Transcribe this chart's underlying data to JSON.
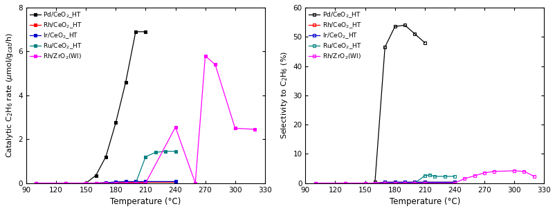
{
  "left_plot": {
    "xlabel": "Temperature (°C)",
    "ylabel": "Catalytic C$_2$H$_6$ rate ($\\mu$mol/g$_{cat}$/h)",
    "xlim": [
      90,
      330
    ],
    "ylim": [
      0,
      8
    ],
    "xticks": [
      90,
      120,
      150,
      180,
      210,
      240,
      270,
      300,
      330
    ],
    "yticks": [
      0,
      2,
      4,
      6,
      8
    ],
    "series": [
      {
        "label": "Pd/CeO$_2$_HT",
        "color": "#000000",
        "marker": "s",
        "markerface": "black",
        "x": [
          100,
          130,
          150,
          160,
          170,
          180,
          190,
          200,
          210
        ],
        "y": [
          0.0,
          0.0,
          0.0,
          0.35,
          1.2,
          2.75,
          4.6,
          6.9,
          6.9
        ]
      },
      {
        "label": "Rh/CeO$_2$_HT",
        "color": "#ff0000",
        "marker": "s",
        "markerface": "red",
        "x": [
          100,
          130,
          150,
          160,
          170,
          180,
          190,
          200,
          210,
          240
        ],
        "y": [
          0.0,
          0.0,
          0.0,
          0.0,
          0.02,
          0.04,
          0.04,
          0.04,
          0.04,
          0.04
        ]
      },
      {
        "label": "Ir/CeO$_2$_HT",
        "color": "#0000cc",
        "marker": "s",
        "markerface": "#0000cc",
        "x": [
          100,
          130,
          150,
          160,
          170,
          180,
          190,
          200,
          210,
          240
        ],
        "y": [
          0.0,
          0.0,
          0.0,
          0.0,
          0.02,
          0.05,
          0.07,
          0.07,
          0.07,
          0.07
        ]
      },
      {
        "label": "Ru/CeO$_2$_HT",
        "color": "#008080",
        "marker": "s",
        "markerface": "#008080",
        "x": [
          100,
          130,
          150,
          160,
          170,
          180,
          190,
          200,
          210,
          220,
          230,
          240
        ],
        "y": [
          0.0,
          0.0,
          0.0,
          0.0,
          0.0,
          0.0,
          0.0,
          0.0,
          1.2,
          1.4,
          1.45,
          1.45
        ]
      },
      {
        "label": "Rh/ZrO$_2$(WI)",
        "color": "#ff00ff",
        "marker": "s",
        "markerface": "#ff00ff",
        "x": [
          100,
          130,
          150,
          160,
          170,
          180,
          190,
          200,
          210,
          240,
          260,
          270,
          280,
          300,
          320
        ],
        "y": [
          0.0,
          0.0,
          0.0,
          0.0,
          0.0,
          0.0,
          0.0,
          0.0,
          0.0,
          2.55,
          0.0,
          5.8,
          5.4,
          2.5,
          2.45
        ]
      }
    ]
  },
  "right_plot": {
    "xlabel": "Temperature (°C)",
    "ylabel": "Selectivity to C$_2$H$_6$ (%)",
    "xlim": [
      90,
      330
    ],
    "ylim": [
      0,
      60
    ],
    "xticks": [
      90,
      120,
      150,
      180,
      210,
      240,
      270,
      300,
      330
    ],
    "yticks": [
      0,
      10,
      20,
      30,
      40,
      50,
      60
    ],
    "series": [
      {
        "label": "Pd/CeO$_2$_HT",
        "color": "#000000",
        "marker": "s",
        "markerface": "none",
        "x": [
          160,
          170,
          180,
          190,
          200,
          210
        ],
        "y": [
          0.5,
          46.5,
          53.5,
          54.0,
          51.0,
          48.0
        ]
      },
      {
        "label": "Rh/CeO$_2$_HT",
        "color": "#ff0000",
        "marker": "s",
        "markerface": "none",
        "x": [
          100,
          130,
          150,
          160,
          170,
          180,
          190,
          200,
          210,
          240
        ],
        "y": [
          0.0,
          0.0,
          0.0,
          0.0,
          0.3,
          0.3,
          0.3,
          0.3,
          0.3,
          0.3
        ]
      },
      {
        "label": "Ir/CeO$_2$_HT",
        "color": "#0000cc",
        "marker": "s",
        "markerface": "none",
        "x": [
          100,
          130,
          150,
          160,
          170,
          180,
          190,
          200,
          210,
          240
        ],
        "y": [
          0.0,
          0.0,
          0.0,
          0.0,
          0.3,
          0.3,
          0.3,
          0.3,
          0.3,
          0.3
        ]
      },
      {
        "label": "Ru/CeO$_2$_HT",
        "color": "#008080",
        "marker": "s",
        "markerface": "none",
        "x": [
          100,
          130,
          150,
          160,
          170,
          180,
          190,
          200,
          210,
          215,
          220,
          230,
          240
        ],
        "y": [
          0.0,
          0.0,
          0.0,
          0.0,
          0.0,
          0.0,
          0.0,
          0.0,
          2.5,
          2.8,
          2.3,
          2.3,
          2.3
        ]
      },
      {
        "label": "Rh/ZrO$_2$(WI)",
        "color": "#ff00ff",
        "marker": "s",
        "markerface": "none",
        "x": [
          100,
          130,
          150,
          160,
          170,
          180,
          190,
          200,
          210,
          240,
          250,
          260,
          270,
          280,
          300,
          310,
          320
        ],
        "y": [
          0.0,
          0.0,
          0.0,
          0.0,
          0.0,
          0.0,
          0.0,
          0.0,
          0.0,
          0.0,
          1.5,
          2.5,
          3.5,
          4.0,
          4.2,
          4.0,
          2.3
        ]
      }
    ]
  }
}
